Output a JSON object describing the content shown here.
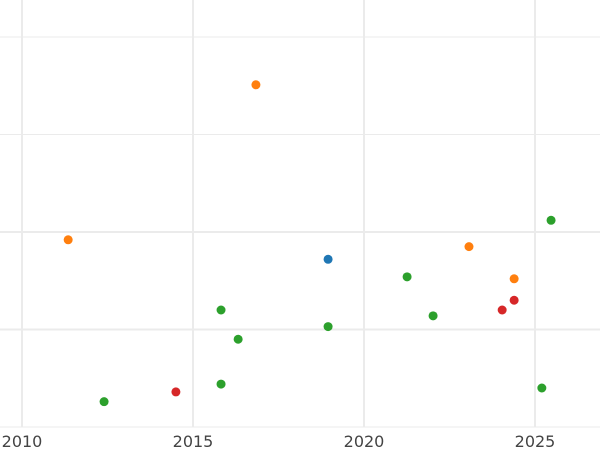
{
  "chart_data": {
    "type": "scatter",
    "title": "",
    "xlabel": "",
    "ylabel": "",
    "xlim": [
      2009.35,
      2026.9
    ],
    "ylim": [
      0,
      4
    ],
    "grid": true,
    "xticks": [
      2010,
      2015,
      2020,
      2025
    ],
    "xtick_labels": [
      "2010",
      "2015",
      "2020",
      "2025"
    ],
    "yticks": [
      0,
      1,
      2,
      3,
      4
    ],
    "colors": {
      "blue": "#1f77b4",
      "orange": "#ff7f0e",
      "green": "#2ca02c",
      "red": "#d62728",
      "grid": "#ebebeb",
      "tick_text": "#444444"
    },
    "series": [
      {
        "color": "#1f77b4",
        "points": [
          [
            2018.95,
            1.72
          ]
        ]
      },
      {
        "color": "#ff7f0e",
        "points": [
          [
            2016.84,
            3.51
          ],
          [
            2011.35,
            1.92
          ],
          [
            2023.07,
            1.85
          ],
          [
            2024.39,
            1.52
          ]
        ]
      },
      {
        "color": "#2ca02c",
        "points": [
          [
            2025.47,
            2.12
          ],
          [
            2021.26,
            1.54
          ],
          [
            2015.82,
            1.2
          ],
          [
            2022.02,
            1.14
          ],
          [
            2018.95,
            1.03
          ],
          [
            2016.32,
            0.9
          ],
          [
            2015.82,
            0.44
          ],
          [
            2012.4,
            0.26
          ],
          [
            2025.2,
            0.4
          ]
        ]
      },
      {
        "color": "#d62728",
        "points": [
          [
            2024.39,
            1.3
          ],
          [
            2024.04,
            1.2
          ],
          [
            2014.5,
            0.36
          ]
        ]
      }
    ]
  }
}
